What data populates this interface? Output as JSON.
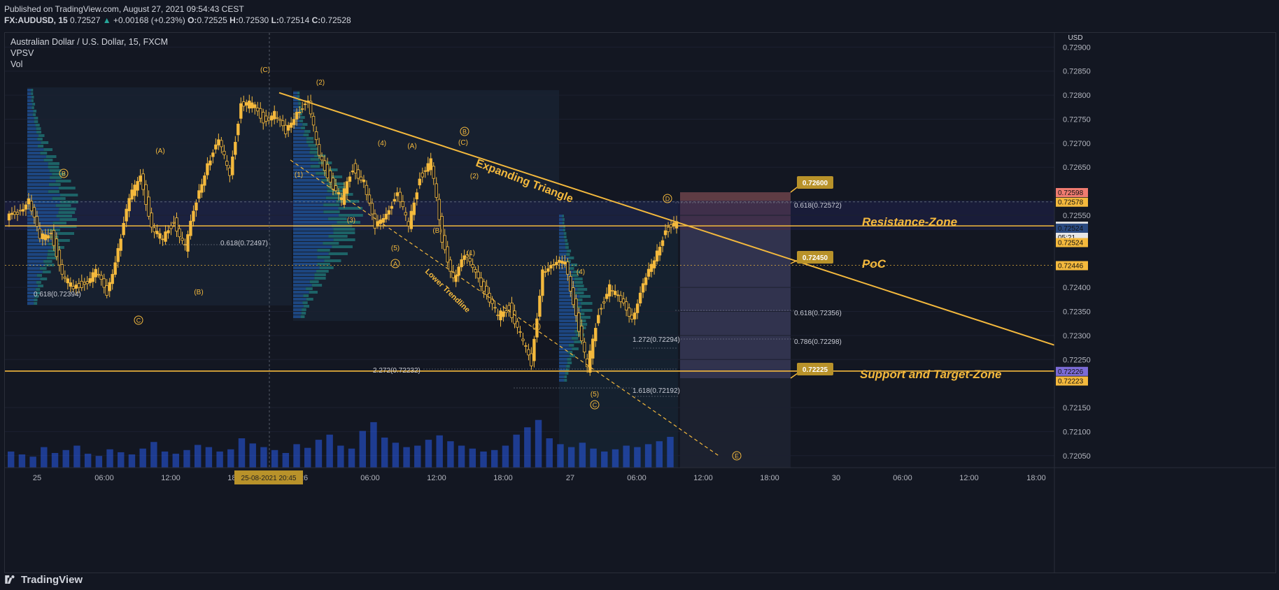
{
  "header": {
    "published": "Published on TradingView.com, August 27, 2021 09:54:43 CEST",
    "symbol": "FX:AUDUSD, 15",
    "last": "0.72527",
    "change": "+0.00168 (+0.23%)",
    "ohlc_o_label": "O:",
    "ohlc_o": "0.72525",
    "ohlc_h_label": "H:",
    "ohlc_h": "0.72530",
    "ohlc_l_label": "L:",
    "ohlc_l": "0.72514",
    "ohlc_c_label": "C:",
    "ohlc_c": "0.72528"
  },
  "legend": {
    "title": "Australian Dollar / U.S. Dollar, 15, FXCM",
    "ind1": "VPSV",
    "ind2": "Vol"
  },
  "footer": {
    "brand": "TradingView"
  },
  "colors": {
    "up": "#f4b93d",
    "accent": "#f4b93d",
    "background": "#131722",
    "grid": "#1f2433",
    "volume": "#2962ff"
  },
  "chart_data": {
    "type": "candlestick",
    "currency": "USD",
    "yaxis_ticks": [
      "0.72900",
      "0.72850",
      "0.72800",
      "0.72750",
      "0.72700",
      "0.72650",
      "0.72550",
      "0.72400",
      "0.72350",
      "0.72300",
      "0.72250",
      "0.72150",
      "0.72100",
      "0.72050"
    ],
    "ylim": [
      0.72025,
      0.72915
    ],
    "xaxis_ticks": [
      "25",
      "06:00",
      "12:00",
      "18:00",
      "26",
      "06:00",
      "12:00",
      "18:00",
      "27",
      "06:00",
      "12:00",
      "18:00",
      "30",
      "06:00",
      "12:00",
      "18:00"
    ],
    "x_hover_label": "25-08-2021   20:45",
    "price_path": [
      [
        0,
        0.7254
      ],
      [
        1,
        0.7256
      ],
      [
        2,
        0.7258
      ],
      [
        3,
        0.725
      ],
      [
        4,
        0.7252
      ],
      [
        5,
        0.7242
      ],
      [
        6,
        0.724
      ],
      [
        7,
        0.7241
      ],
      [
        8,
        0.7243
      ],
      [
        9,
        0.7239
      ],
      [
        10,
        0.7248
      ],
      [
        11,
        0.7258
      ],
      [
        12,
        0.7264
      ],
      [
        13,
        0.7252
      ],
      [
        14,
        0.725
      ],
      [
        15,
        0.7254
      ],
      [
        16,
        0.7248
      ],
      [
        17,
        0.7258
      ],
      [
        18,
        0.7266
      ],
      [
        19,
        0.727
      ],
      [
        20,
        0.7264
      ],
      [
        21,
        0.7278
      ],
      [
        22,
        0.7278
      ],
      [
        23,
        0.7275
      ],
      [
        24,
        0.7276
      ],
      [
        25,
        0.7272
      ],
      [
        26,
        0.7277
      ],
      [
        27,
        0.7278
      ],
      [
        28,
        0.7268
      ],
      [
        29,
        0.7262
      ],
      [
        30,
        0.7258
      ],
      [
        31,
        0.7265
      ],
      [
        32,
        0.7262
      ],
      [
        33,
        0.7252
      ],
      [
        34,
        0.7256
      ],
      [
        35,
        0.7259
      ],
      [
        36,
        0.7253
      ],
      [
        37,
        0.7263
      ],
      [
        38,
        0.7266
      ],
      [
        39,
        0.725
      ],
      [
        40,
        0.7242
      ],
      [
        41,
        0.7246
      ],
      [
        42,
        0.7244
      ],
      [
        43,
        0.7238
      ],
      [
        44,
        0.7234
      ],
      [
        45,
        0.7236
      ],
      [
        46,
        0.723
      ],
      [
        47,
        0.7224
      ],
      [
        48,
        0.7244
      ],
      [
        49,
        0.7244
      ],
      [
        50,
        0.7246
      ],
      [
        51,
        0.7234
      ],
      [
        52,
        0.7223
      ],
      [
        53,
        0.7235
      ],
      [
        54,
        0.724
      ],
      [
        55,
        0.7237
      ],
      [
        56,
        0.7234
      ],
      [
        57,
        0.724
      ],
      [
        58,
        0.7246
      ],
      [
        59,
        0.7252
      ],
      [
        60,
        0.7253
      ]
    ],
    "horizontal_levels": [
      {
        "value": 0.72528,
        "label": "0.72528",
        "style": "solid"
      },
      {
        "value": 0.72226,
        "label": "0.72226",
        "style": "solid"
      }
    ],
    "price_tags": [
      {
        "label": "0.72598",
        "color": "#ef7b70"
      },
      {
        "label": "0.72578",
        "color": "#f4b93d"
      },
      {
        "label": "0.72528",
        "color": "#e6e6e6"
      },
      {
        "label": "05:21",
        "color": "#e6e6e6"
      },
      {
        "label": "0.72524",
        "color": "#2a4a80"
      },
      {
        "label": "0.72524",
        "color": "#f4b93d"
      },
      {
        "label": "0.72446",
        "color": "#f4b93d"
      },
      {
        "label": "0.72226",
        "color": "#7b6bd6"
      },
      {
        "label": "0.72223",
        "color": "#f4b93d"
      }
    ],
    "zones": {
      "resistance": "Resistance-Zone",
      "poc": "PoC",
      "support": "Support and Target-Zone"
    },
    "callouts": [
      "0.72600",
      "0.72450",
      "0.72225"
    ],
    "trendlines": {
      "upper": "Expanding Triangle",
      "lower": "Lower Trendline"
    },
    "fib_labels": [
      "0.618(0.72572)",
      "0.618(0.72497)",
      "0.618(0.72394)",
      "0.618(0.72356)",
      "0.786(0.72298)",
      "1.272(0.72294)",
      "2.272(0.72232)",
      "1.618(0.72192)"
    ],
    "wave_labels": [
      "(C)",
      "(2)",
      "(A)",
      "(B)",
      "(4)",
      "(A)",
      "(C)",
      "(1)",
      "(3)",
      "(5)",
      "(B)",
      "(2)",
      "(1)",
      "(3)",
      "(4)",
      "(5)"
    ],
    "circled_labels": [
      "B",
      "C",
      "B",
      "A",
      "D",
      "C",
      "E"
    ],
    "volume": [
      22,
      18,
      15,
      28,
      20,
      24,
      30,
      19,
      16,
      25,
      21,
      18,
      26,
      35,
      22,
      19,
      24,
      31,
      28,
      22,
      25,
      40,
      33,
      28,
      24,
      20,
      32,
      27,
      38,
      45,
      30,
      26,
      50,
      62,
      41,
      34,
      28,
      30,
      38,
      44,
      36,
      30,
      26,
      22,
      24,
      30,
      45,
      55,
      65,
      40,
      32,
      28,
      34,
      26,
      22,
      25,
      30,
      28,
      32,
      36,
      42
    ]
  }
}
